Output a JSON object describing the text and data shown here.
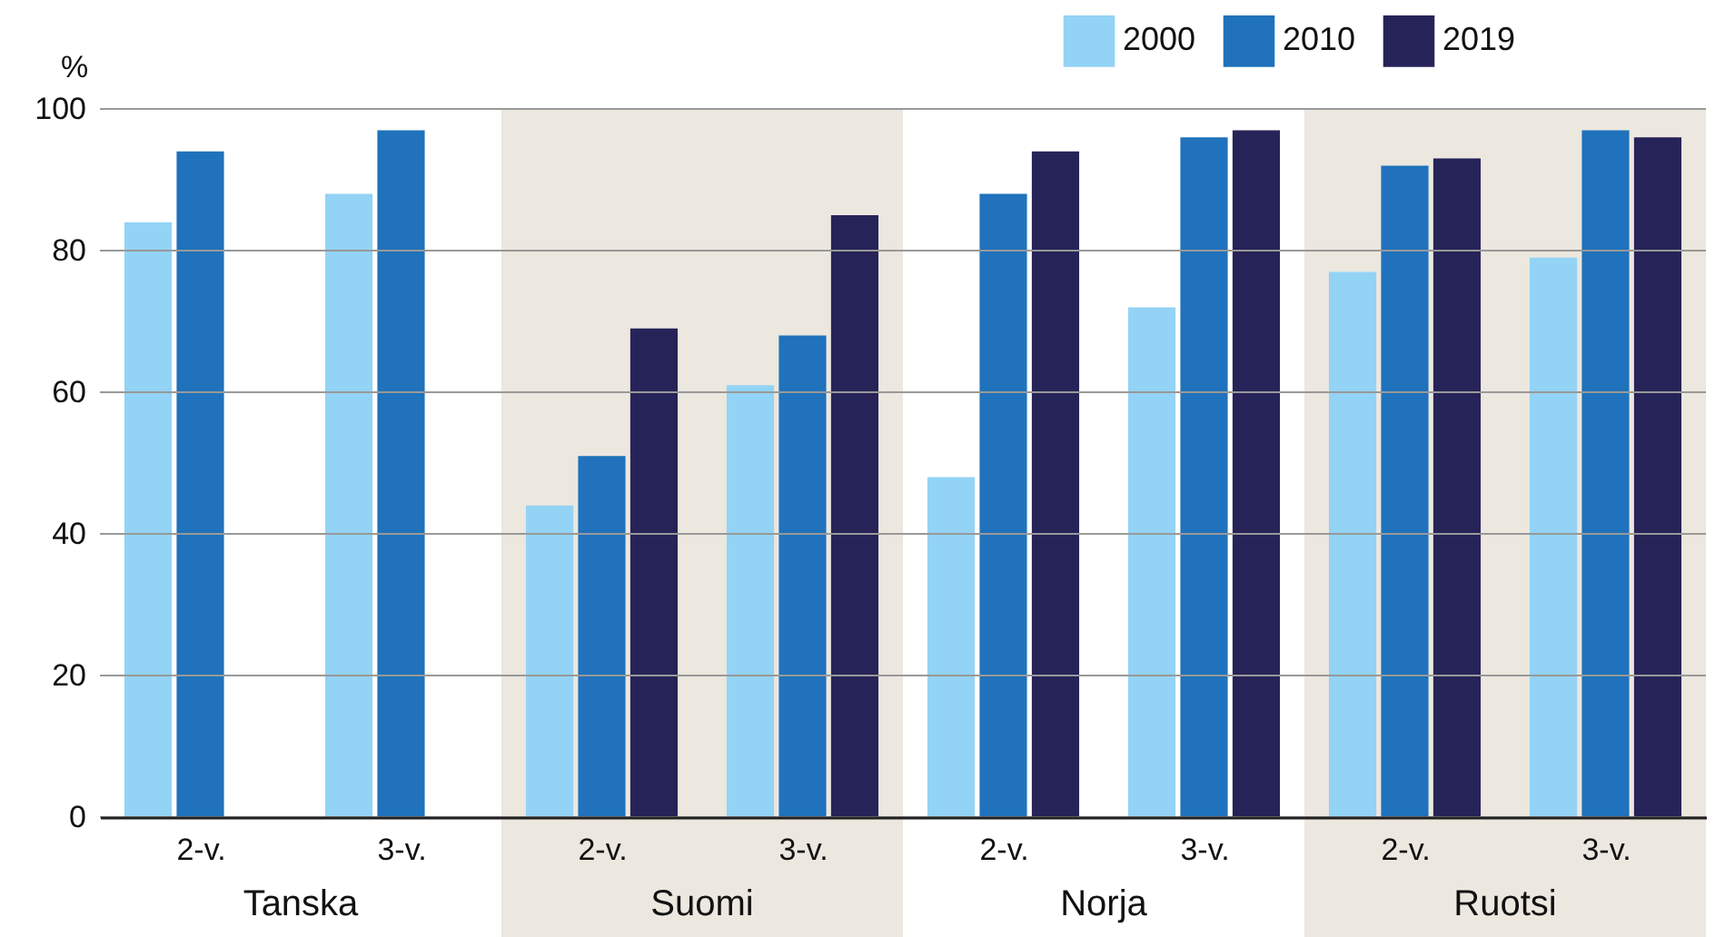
{
  "chart_data": {
    "type": "bar",
    "ylabel": "%",
    "categories": [
      "2-v.",
      "3-v.",
      "2-v.",
      "3-v.",
      "2-v.",
      "3-v.",
      "2-v.",
      "3-v."
    ],
    "series": [
      {
        "name": "2000",
        "color": "#93d3f5",
        "values": [
          84,
          88,
          44,
          61,
          48,
          72,
          77,
          79
        ]
      },
      {
        "name": "2010",
        "color": "#1f72bb",
        "values": [
          94,
          97,
          51,
          68,
          88,
          96,
          92,
          97
        ]
      },
      {
        "name": "2019",
        "color": "#262358",
        "values": [
          null,
          null,
          69,
          85,
          94,
          97,
          93,
          96
        ]
      }
    ],
    "ylim": [
      0,
      100
    ],
    "yticks": [
      0,
      20,
      40,
      60,
      80,
      100
    ],
    "grid": "y",
    "legend": "top right",
    "annotations": [
      "Tanska",
      "Suomi",
      "Norja",
      "Ruotsi"
    ]
  }
}
